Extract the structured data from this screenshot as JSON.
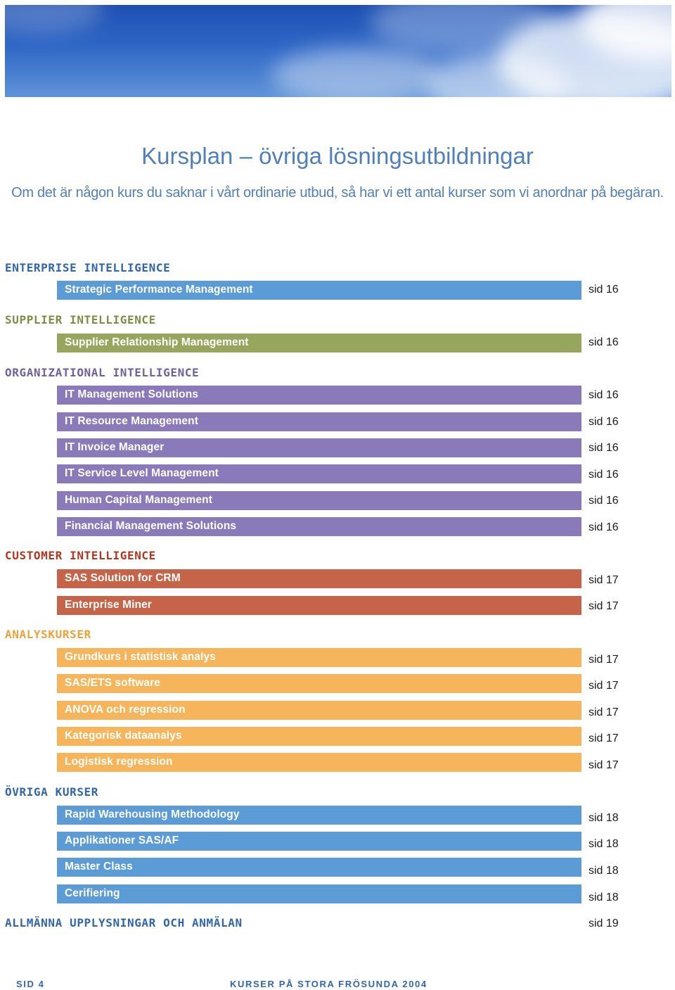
{
  "header": {
    "title": "Kursplan – övriga lösningsutbildningar",
    "subtitle": "Om det är någon kurs du saknar i vårt ordinarie utbud, så har vi ett antal kurser som vi anordnar på begäran."
  },
  "colors": {
    "enterprise": "#2f66ad",
    "supplier": "#7e8c44",
    "organizational": "#6f5fa3",
    "customer": "#b4361f",
    "analys": "#eea23a",
    "ovriga": "#2f66ad"
  },
  "sections": [
    {
      "heading": "ENTERPRISE INTELLIGENCE",
      "courses": [
        {
          "name": "Strategic Performance Management",
          "page": "sid 16"
        }
      ]
    },
    {
      "heading": "SUPPLIER INTELLIGENCE",
      "courses": [
        {
          "name": "Supplier Relationship Management",
          "page": "sid 16"
        }
      ]
    },
    {
      "heading": "ORGANIZATIONAL INTELLIGENCE",
      "courses": [
        {
          "name": "IT Management Solutions",
          "page": "sid 16"
        },
        {
          "name": "IT Resource Management",
          "page": "sid 16"
        },
        {
          "name": "IT Invoice Manager",
          "page": "sid 16"
        },
        {
          "name": "IT Service Level Management",
          "page": "sid 16"
        },
        {
          "name": "Human Capital Management",
          "page": "sid 16"
        },
        {
          "name": "Financial Management Solutions",
          "page": "sid 16"
        }
      ]
    },
    {
      "heading": "CUSTOMER INTELLIGENCE",
      "courses": [
        {
          "name": "SAS Solution for CRM",
          "page": "sid 17"
        },
        {
          "name": "Enterprise Miner",
          "page": "sid 17"
        }
      ]
    },
    {
      "heading": "ANALYSKURSER",
      "courses": [
        {
          "name": "Grundkurs i statistisk analys",
          "page": "sid 17"
        },
        {
          "name": "SAS/ETS software",
          "page": "sid 17"
        },
        {
          "name": "ANOVA och regression",
          "page": "sid 17"
        },
        {
          "name": "Kategorisk dataanalys",
          "page": "sid 17"
        },
        {
          "name": "Logistisk regression",
          "page": "sid 17"
        }
      ]
    },
    {
      "heading": "ÖVRIGA KURSER",
      "courses": [
        {
          "name": "Rapid Warehousing Methodology",
          "page": "sid 18"
        },
        {
          "name": "Applikationer SAS/AF",
          "page": "sid 18"
        },
        {
          "name": "Master Class",
          "page": "sid 18"
        },
        {
          "name": "Cerifiering",
          "page": "sid 18"
        }
      ]
    }
  ],
  "general": {
    "heading": "ALLMÄNNA UPPLYSNINGAR OCH ANMÄLAN",
    "page": "sid 19"
  },
  "footer": {
    "page_label": "SID 4",
    "publication": "KURSER PÅ STORA FRÖSUNDA 2004"
  }
}
